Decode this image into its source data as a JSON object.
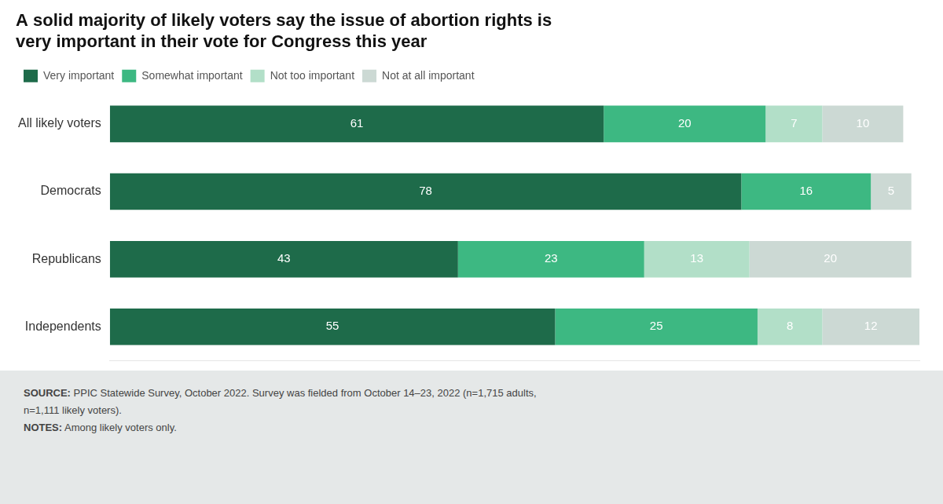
{
  "chart_data": {
    "type": "bar",
    "orientation": "horizontal",
    "stacked": true,
    "title": [
      "A solid majority of likely voters say the issue of abortion rights is",
      "very important in their vote for Congress this year"
    ],
    "categories": [
      "All likely voters",
      "Democrats",
      "Republicans",
      "Independents"
    ],
    "series": [
      {
        "name": "Very important",
        "color": "#1e6b4a",
        "values": [
          61,
          78,
          43,
          55
        ]
      },
      {
        "name": "Somewhat important",
        "color": "#3db882",
        "values": [
          20,
          16,
          23,
          25
        ]
      },
      {
        "name": "Not too important",
        "color": "#b2dfc8",
        "values": [
          7,
          0,
          13,
          8
        ]
      },
      {
        "name": "Not at all important",
        "color": "#ccd9d4",
        "values": [
          10,
          5,
          20,
          12
        ]
      }
    ],
    "xlim": [
      0,
      100
    ],
    "grid": false,
    "legend": "top-left",
    "data_labels": true,
    "tick_labels": "y",
    "annotations": [
      "SOURCE: PPIC Statewide Survey, October 2022. Survey was fielded from October 14–23, 2022 (n=1,715 adults,",
      "n=1,111 likely voters).",
      "NOTES: Among likely voters only."
    ]
  }
}
